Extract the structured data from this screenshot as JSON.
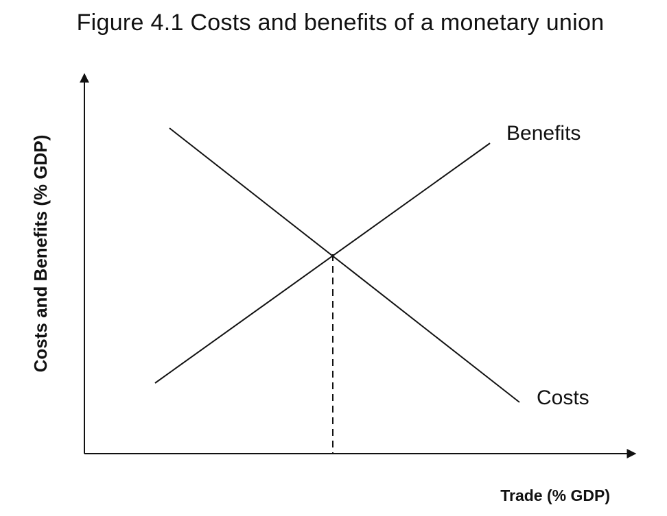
{
  "title": "Figure 4.1 Costs and benefits of a monetary union",
  "chart_data": {
    "type": "line",
    "xlabel": "Trade (% GDP)",
    "ylabel": "Costs and Benefits (% GDP)",
    "series": [
      {
        "name": "Benefits",
        "direction": "upward-sloping"
      },
      {
        "name": "Costs",
        "direction": "downward-sloping"
      }
    ],
    "annotations": [
      "intersection marked by dashed vertical line to the x-axis"
    ],
    "grid": false,
    "tick_labels": false
  }
}
